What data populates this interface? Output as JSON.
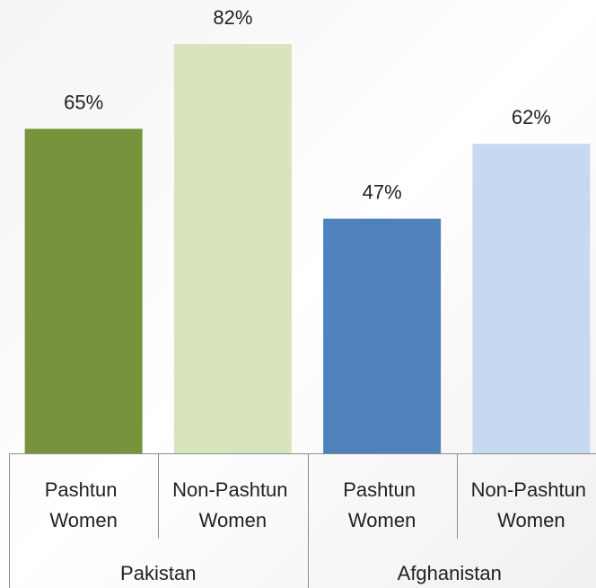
{
  "chart_data": {
    "type": "bar",
    "categories": [
      "Pashtun Women",
      "Non-Pashtun Women",
      "Pashtun Women",
      "Non-Pashtun Women"
    ],
    "groups": [
      "Pakistan",
      "Afghanistan"
    ],
    "values": [
      65,
      82,
      47,
      62
    ],
    "value_labels": [
      "65%",
      "82%",
      "47%",
      "62%"
    ],
    "colors": [
      "#77933c",
      "#d7e4bd",
      "#4f81bd",
      "#c6d9f1"
    ]
  }
}
